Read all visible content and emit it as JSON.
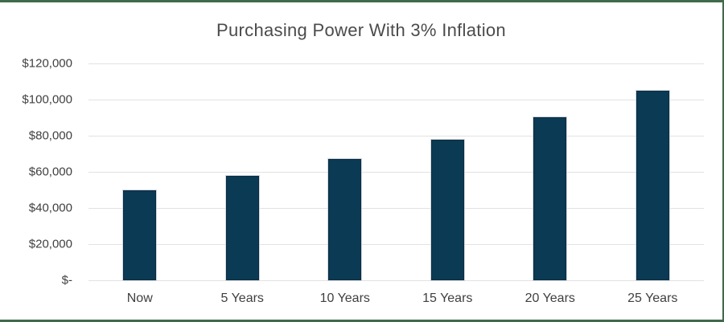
{
  "chart_data": {
    "type": "bar",
    "title": "Purchasing Power With 3% Inflation",
    "categories": [
      "Now",
      "5 Years",
      "10 Years",
      "15 Years",
      "20 Years",
      "25 Years"
    ],
    "values": [
      50000,
      57964,
      67196,
      77898,
      90306,
      104689
    ],
    "xlabel": "",
    "ylabel": "",
    "ylim": [
      0,
      120000
    ],
    "ytick_step": 20000,
    "ytick_labels": [
      "$-",
      "$20,000",
      "$40,000",
      "$60,000",
      "$80,000",
      "$100,000",
      "$120,000"
    ],
    "grid": "horizontal-only",
    "legend": "none",
    "colors": {
      "bar_fill": "#0a3a54",
      "bar_border": "#0e2b3f",
      "gridline": "#e2e2e2",
      "frame_border": "#406a4b",
      "title_text": "#4b4b4b",
      "tick_text": "#3f3f3f",
      "background": "#ffffff"
    }
  }
}
